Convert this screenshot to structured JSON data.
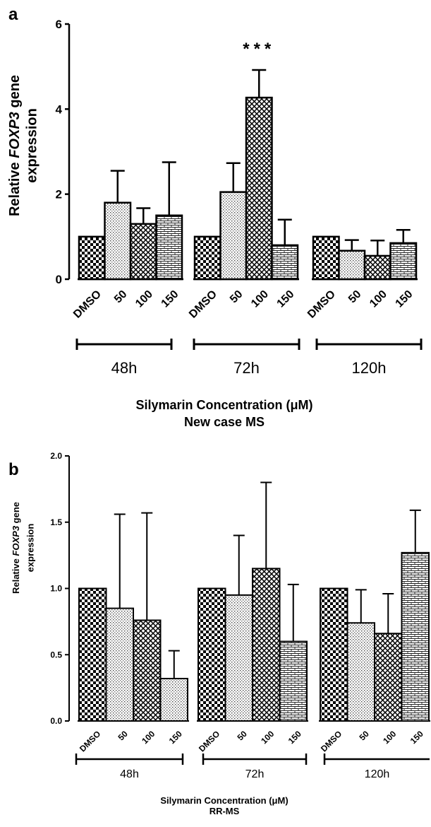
{
  "chart_data": [
    {
      "panel": "a",
      "type": "bar",
      "ylabel_prefix": "Relative ",
      "ylabel_gene": "FOXP3",
      "ylabel_suffix": " gene",
      "ylabel_line2": "expression",
      "ylim": [
        0,
        6
      ],
      "yticks": [
        "0",
        "2",
        "4",
        "6"
      ],
      "grid": false,
      "groups": [
        {
          "label": "48h",
          "categories": [
            "DMSO",
            "50",
            "100",
            "150"
          ],
          "values": [
            1.0,
            1.8,
            1.3,
            1.5
          ],
          "errors": [
            0.0,
            0.75,
            0.37,
            1.25
          ],
          "patterns": [
            "checker",
            "dots",
            "crosshatch",
            "brick"
          ]
        },
        {
          "label": "72h",
          "categories": [
            "DMSO",
            "50",
            "100",
            "150"
          ],
          "values": [
            1.0,
            2.05,
            4.27,
            0.8
          ],
          "errors": [
            0.0,
            0.68,
            0.65,
            0.6
          ],
          "patterns": [
            "checker",
            "dots",
            "crosshatch",
            "brick"
          ]
        },
        {
          "label": "120h",
          "categories": [
            "DMSO",
            "50",
            "100",
            "150"
          ],
          "values": [
            1.0,
            0.67,
            0.55,
            0.85
          ],
          "errors": [
            0.0,
            0.25,
            0.36,
            0.31
          ],
          "patterns": [
            "checker",
            "dots",
            "crosshatch",
            "brick"
          ]
        }
      ],
      "annotation": {
        "text": "***",
        "group": 1,
        "bar": 2
      },
      "xlabel": "Silymarin Concentration (μM)",
      "subtitle": "New case MS"
    },
    {
      "panel": "b",
      "type": "bar",
      "ylabel_prefix": "Relative ",
      "ylabel_gene": "FOXP3",
      "ylabel_suffix": " gene",
      "ylabel_line2": "expression",
      "ylim": [
        0,
        2
      ],
      "yticks": [
        "0.0",
        "0.5",
        "1.0",
        "1.5",
        "2.0"
      ],
      "grid": false,
      "groups": [
        {
          "label": "48h",
          "categories": [
            "DMSO",
            "50",
            "100",
            "150"
          ],
          "values": [
            1.0,
            0.85,
            0.76,
            0.32
          ],
          "errors": [
            0.0,
            0.71,
            0.81,
            0.21
          ],
          "patterns": [
            "checker",
            "dots",
            "crosshatch",
            "dots"
          ]
        },
        {
          "label": "72h",
          "categories": [
            "DMSO",
            "50",
            "100",
            "150"
          ],
          "values": [
            1.0,
            0.95,
            1.15,
            0.6
          ],
          "errors": [
            0.0,
            0.45,
            0.65,
            0.43
          ],
          "patterns": [
            "checker",
            "dots",
            "crosshatch",
            "brick"
          ]
        },
        {
          "label": "120h",
          "categories": [
            "DMSO",
            "50",
            "100",
            "150"
          ],
          "values": [
            1.0,
            0.74,
            0.66,
            1.27
          ],
          "errors": [
            0.0,
            0.25,
            0.3,
            0.32
          ],
          "patterns": [
            "checker",
            "dots",
            "crosshatch",
            "brick"
          ]
        }
      ],
      "xlabel": "Silymarin Concentration (μM)",
      "subtitle": "RR-MS"
    }
  ]
}
